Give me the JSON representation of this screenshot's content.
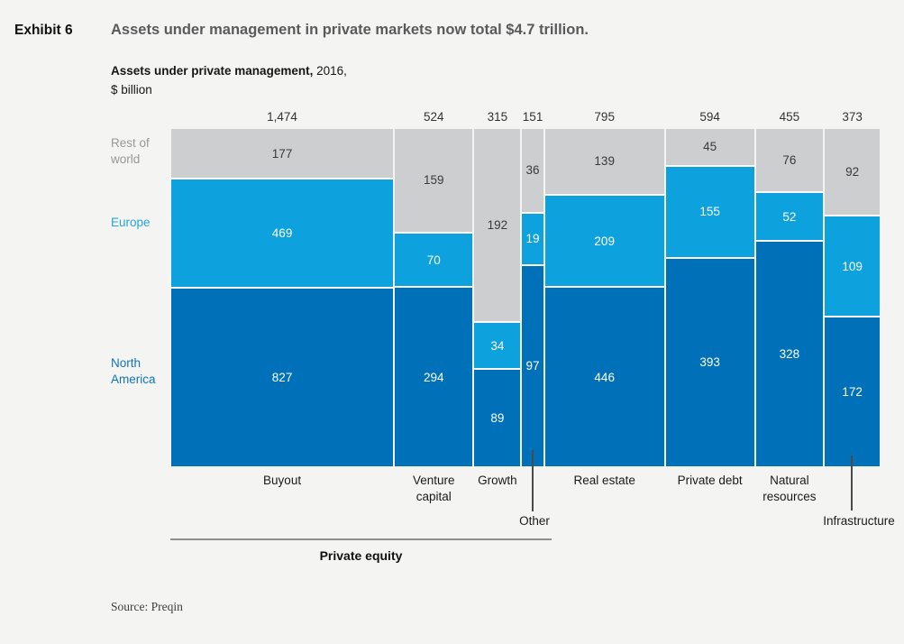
{
  "header": {
    "exhibit_label": "Exhibit 6",
    "title": "Assets under management in private markets now total $4.7 trillion."
  },
  "subtitle": {
    "bold": "Assets under private management,",
    "year": "2016,",
    "unit": "$ billion"
  },
  "source": "Source: Preqin",
  "colors": {
    "north_america": "#0071b8",
    "europe": "#0da2dd",
    "rest_of_world": "#cdced0",
    "background": "#f4f4f2",
    "separator": "#ffffff"
  },
  "chart_data": {
    "type": "marimekko",
    "title": "Assets under private management, 2016, $ billion",
    "orientation": "columns sized by total, stacked to 100% height",
    "row_labels": [
      {
        "key": "rest_of_world",
        "label": "Rest of world"
      },
      {
        "key": "europe",
        "label": "Europe"
      },
      {
        "key": "north_america",
        "label": "North America"
      }
    ],
    "columns": [
      {
        "category": "Buyout",
        "total_label": "1,474",
        "total": 1474,
        "segments": {
          "rest_of_world": 177,
          "europe": 469,
          "north_america": 827
        }
      },
      {
        "category": "Venture capital",
        "total_label": "524",
        "total": 524,
        "segments": {
          "rest_of_world": 159,
          "europe": 70,
          "north_america": 294
        }
      },
      {
        "category": "Growth",
        "total_label": "315",
        "total": 315,
        "segments": {
          "rest_of_world": 192,
          "europe": 34,
          "north_america": 89
        }
      },
      {
        "category": "Other",
        "total_label": "151",
        "total": 151,
        "segments": {
          "rest_of_world": 36,
          "europe": 19,
          "north_america": 97
        },
        "label_offset": true
      },
      {
        "category": "Real estate",
        "total_label": "795",
        "total": 795,
        "segments": {
          "rest_of_world": 139,
          "europe": 209,
          "north_america": 446
        }
      },
      {
        "category": "Private debt",
        "total_label": "594",
        "total": 594,
        "segments": {
          "rest_of_world": 45,
          "europe": 155,
          "north_america": 393
        }
      },
      {
        "category": "Natural resources",
        "total_label": "455",
        "total": 455,
        "segments": {
          "rest_of_world": 76,
          "europe": 52,
          "north_america": 328
        }
      },
      {
        "category": "Infrastructure",
        "total_label": "373",
        "total": 373,
        "segments": {
          "rest_of_world": 92,
          "europe": 109,
          "north_america": 172
        },
        "label_offset": true
      }
    ],
    "group_bracket": {
      "label": "Private equity",
      "columns": [
        "Buyout",
        "Venture capital",
        "Growth",
        "Other"
      ]
    }
  }
}
